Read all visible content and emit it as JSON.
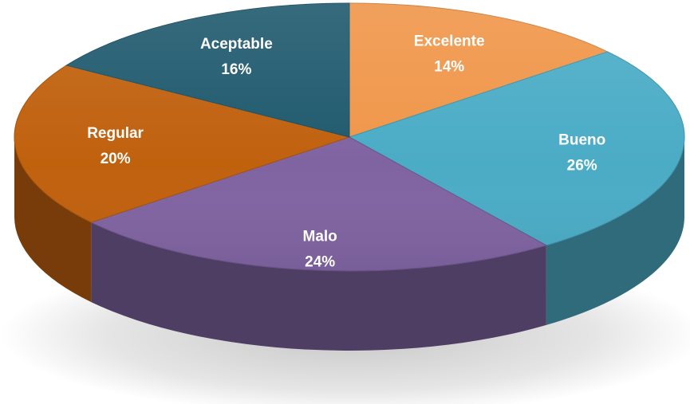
{
  "chart_data": {
    "type": "pie",
    "style": "3d",
    "title": "",
    "legend": "none",
    "slices": [
      {
        "label": "Excelente",
        "value": 14,
        "display": "14%",
        "color": "#F0964A"
      },
      {
        "label": "Bueno",
        "value": 26,
        "display": "26%",
        "color": "#4BACC6"
      },
      {
        "label": "Malo",
        "value": 24,
        "display": "24%",
        "color": "#8064A2"
      },
      {
        "label": "Regular",
        "value": 20,
        "display": "20%",
        "color": "#C0610E"
      },
      {
        "label": "Aceptable",
        "value": 16,
        "display": "16%",
        "color": "#205A6E"
      }
    ]
  }
}
